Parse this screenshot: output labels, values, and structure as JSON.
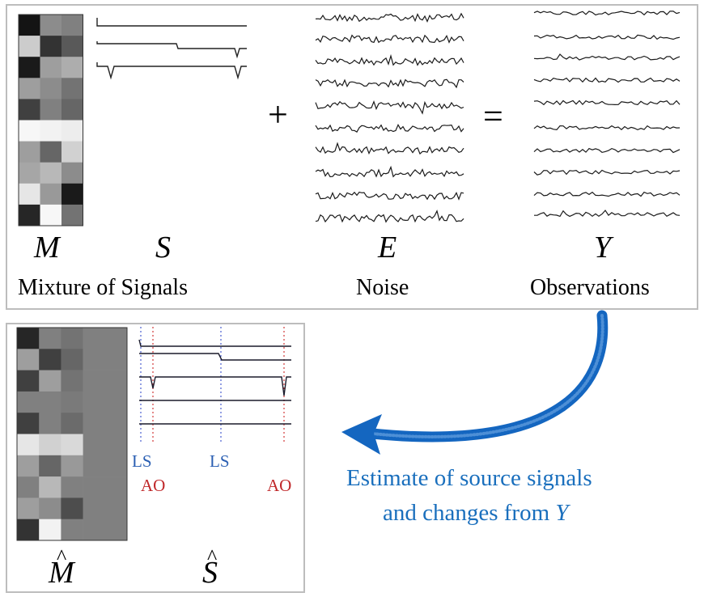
{
  "top_panel": {
    "labels": {
      "M": "M",
      "S": "S",
      "E": "E",
      "Y": "Y",
      "mixture": "Mixture of Signals",
      "noise": "Noise",
      "observations": "Observations"
    },
    "plus": "+",
    "equals": "=",
    "mixing_matrix": [
      [
        0.08,
        0.55,
        0.5
      ],
      [
        0.8,
        0.2,
        0.35
      ],
      [
        0.1,
        0.62,
        0.68
      ],
      [
        0.62,
        0.55,
        0.45
      ],
      [
        0.25,
        0.5,
        0.4
      ],
      [
        0.97,
        0.95,
        0.93
      ],
      [
        0.62,
        0.4,
        0.82
      ],
      [
        0.65,
        0.72,
        0.55
      ],
      [
        0.9,
        0.6,
        0.1
      ],
      [
        0.15,
        0.97,
        0.45
      ]
    ]
  },
  "bottom_panel": {
    "labels": {
      "M_hat": "M",
      "S_hat": "S",
      "hat": "^"
    },
    "markers": {
      "ls1": "LS",
      "ls2": "LS",
      "ao1": "AO",
      "ao2": "AO"
    },
    "estimated_matrix": [
      [
        0.15,
        0.5,
        0.45,
        0.5,
        0.5
      ],
      [
        0.62,
        0.25,
        0.4,
        0.5,
        0.5
      ],
      [
        0.25,
        0.62,
        0.45,
        0.5,
        0.5
      ],
      [
        0.5,
        0.5,
        0.48,
        0.5,
        0.5
      ],
      [
        0.25,
        0.5,
        0.42,
        0.5,
        0.5
      ],
      [
        0.9,
        0.82,
        0.85,
        0.5,
        0.5
      ],
      [
        0.62,
        0.4,
        0.6,
        0.5,
        0.5
      ],
      [
        0.5,
        0.72,
        0.5,
        0.5,
        0.5
      ],
      [
        0.62,
        0.55,
        0.3,
        0.5,
        0.5
      ],
      [
        0.2,
        0.95,
        0.5,
        0.5,
        0.5
      ]
    ]
  },
  "caption": {
    "line1": "Estimate of source signals",
    "line2_prefix": "and changes from ",
    "line2_var": "Y"
  },
  "colors": {
    "arrow": "#1466c0",
    "ls_line": "#4a5fd0",
    "ao_line": "#d23a3a",
    "panel_border": "#bdbdbd"
  }
}
